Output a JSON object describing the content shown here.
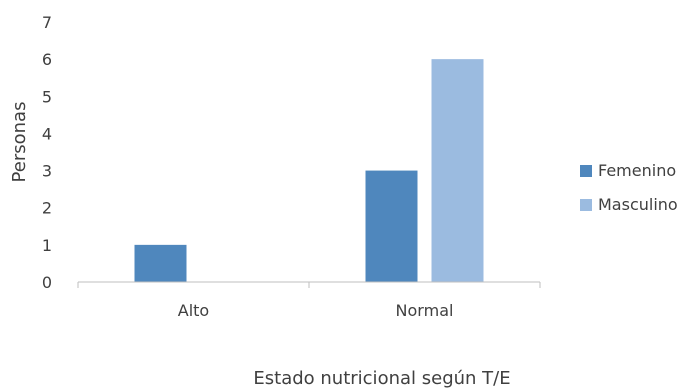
{
  "chart_data": {
    "type": "bar",
    "categories": [
      "Alto",
      "Normal"
    ],
    "series": [
      {
        "name": "Femenino",
        "values": [
          1,
          3
        ],
        "color": "#4f87bd"
      },
      {
        "name": "Masculino",
        "values": [
          0,
          6
        ],
        "color": "#9bbbe0"
      }
    ],
    "xlabel": "Estado nutricional según T/E",
    "ylabel": "Personas",
    "ylim": [
      0,
      7
    ],
    "yticks": [
      0,
      1,
      2,
      3,
      4,
      5,
      6,
      7
    ],
    "grid": false,
    "legend_position": "right"
  }
}
